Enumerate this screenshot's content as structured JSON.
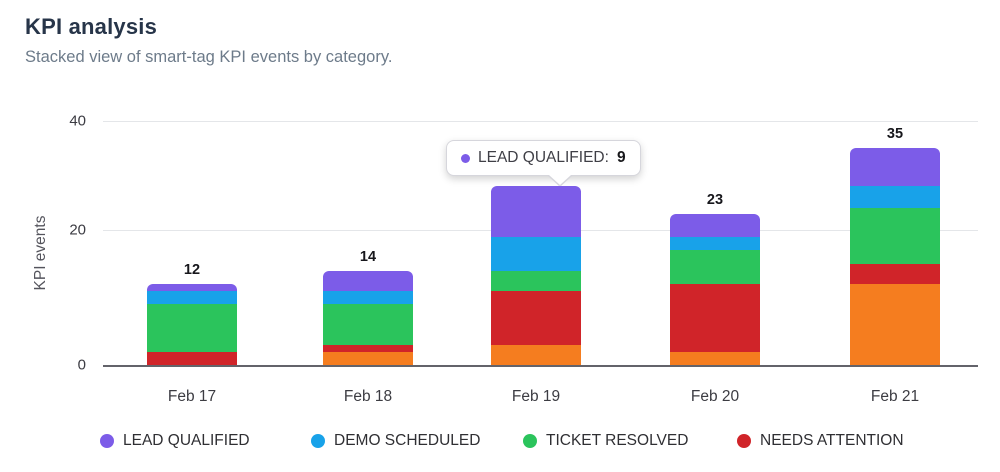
{
  "header": {
    "title": "KPI analysis",
    "subtitle": "Stacked view of smart-tag KPI events by category."
  },
  "tooltip": {
    "name": "LEAD QUALIFIED:",
    "value": "9",
    "dot_color": "#7C5CE8"
  },
  "chart_data": {
    "type": "bar",
    "stacked": true,
    "title": "KPI analysis",
    "xlabel": "",
    "ylabel": "KPI events",
    "categories": [
      "Feb 17",
      "Feb 18",
      "Feb 19",
      "Feb 20",
      "Feb 21"
    ],
    "yticks": [
      "40",
      "20",
      "0"
    ],
    "ylim": [
      0,
      40
    ],
    "grid": "horizontal",
    "legend_position": "bottom",
    "series": [
      {
        "name": "",
        "color": "#F57D1F",
        "in_legend": false,
        "values": [
          0,
          2,
          3,
          2,
          12
        ]
      },
      {
        "name": "NEEDS ATTENTION",
        "color": "#D02429",
        "in_legend": true,
        "values": [
          2,
          1,
          8,
          10,
          3
        ]
      },
      {
        "name": "TICKET RESOLVED",
        "color": "#2BC45C",
        "in_legend": true,
        "values": [
          7,
          6,
          3,
          5,
          9
        ]
      },
      {
        "name": "DEMO SCHEDULED",
        "color": "#18A2E9",
        "in_legend": true,
        "values": [
          2,
          2,
          5,
          2,
          4
        ]
      },
      {
        "name": "LEAD QUALIFIED",
        "color": "#7C5CE8",
        "in_legend": true,
        "values": [
          1,
          3,
          9,
          4,
          7
        ]
      }
    ],
    "totals": [
      "12",
      "14",
      "",
      "23",
      "35"
    ],
    "legend": [
      {
        "label": "LEAD QUALIFIED",
        "color": "#7C5CE8"
      },
      {
        "label": "DEMO SCHEDULED",
        "color": "#18A2E9"
      },
      {
        "label": "TICKET RESOLVED",
        "color": "#2BC45C"
      },
      {
        "label": "NEEDS ATTENTION",
        "color": "#D02429"
      }
    ],
    "tooltip_target": {
      "category": "Feb 19",
      "series": "LEAD QUALIFIED",
      "value": 9
    }
  }
}
